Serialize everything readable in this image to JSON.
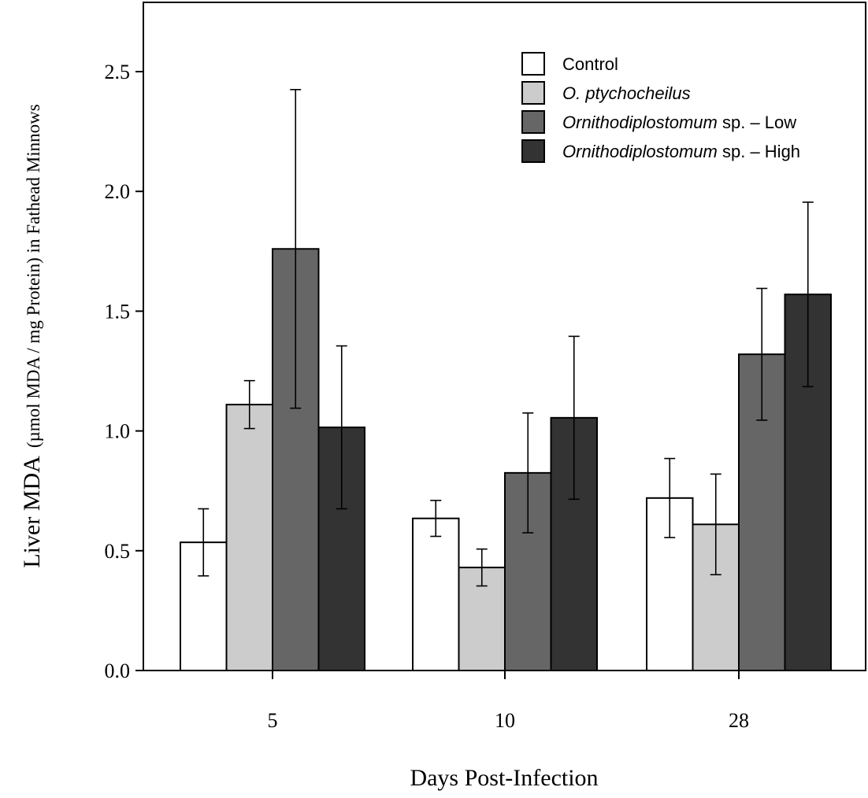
{
  "chart_data": {
    "type": "bar",
    "categories": [
      "5",
      "10",
      "28"
    ],
    "xlabel": "Days Post-Infection",
    "ylabel_main": "Liver MDA",
    "ylabel_sub": "(µmol MDA / mg Protein) in Fathead Minnows",
    "ylim": [
      0,
      2.75
    ],
    "yticks": [
      "0.0",
      "0.5",
      "1.0",
      "1.5",
      "2.0",
      "2.5"
    ],
    "grid": false,
    "legend_position": "top-right",
    "series": [
      {
        "name": "Control",
        "legend_italic": "",
        "legend_plain": "Control",
        "color": "#ffffff",
        "values": [
          0.535,
          0.635,
          0.72
        ],
        "errors": [
          0.14,
          0.075,
          0.165
        ]
      },
      {
        "name": "O. ptychocheilus",
        "legend_italic": "O. ptychocheilus",
        "legend_plain": "",
        "color": "#cccccc",
        "values": [
          1.11,
          0.43,
          0.61
        ],
        "errors": [
          0.1,
          0.077,
          0.21
        ]
      },
      {
        "name": "Ornithodiplostomum sp. – Low",
        "legend_italic": "Ornithodiplostomum",
        "legend_plain": " sp. – Low",
        "color": "#666666",
        "values": [
          1.76,
          0.825,
          1.32
        ],
        "errors": [
          0.665,
          0.25,
          0.275
        ]
      },
      {
        "name": "Ornithodiplostomum sp. – High",
        "legend_italic": "Ornithodiplostomum",
        "legend_plain": " sp. – High",
        "color": "#333333",
        "values": [
          1.015,
          1.055,
          1.57
        ],
        "errors": [
          0.34,
          0.34,
          0.385
        ]
      }
    ]
  }
}
